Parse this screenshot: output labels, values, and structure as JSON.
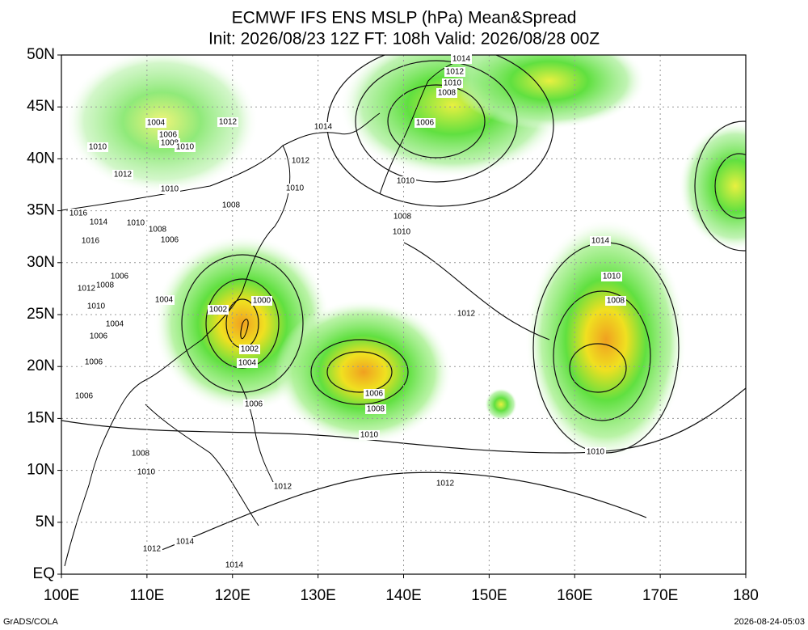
{
  "header": {
    "title": "ECMWF IFS ENS MSLP (hPa) Mean&Spread",
    "subtitle": "Init: 2026/08/23 12Z  FT: 108h  Valid: 2026/08/28 00Z"
  },
  "axes": {
    "lat_labels": [
      "EQ",
      "5N",
      "10N",
      "15N",
      "20N",
      "25N",
      "30N",
      "35N",
      "40N",
      "45N",
      "50N"
    ],
    "lon_labels": [
      "100E",
      "110E",
      "120E",
      "130E",
      "140E",
      "150E",
      "160E",
      "170E",
      "180"
    ]
  },
  "contour_labels": [
    "1014",
    "1012",
    "1010",
    "1008",
    "1006",
    "1014",
    "1012",
    "1004",
    "1006",
    "1008",
    "1010",
    "1010",
    "1012",
    "1012",
    "1010",
    "1010",
    "1010",
    "1008",
    "1008",
    "1010",
    "1016",
    "1014",
    "1010",
    "1008",
    "1006",
    "1016",
    "1014",
    "1006",
    "1008",
    "1012",
    "1010",
    "1008",
    "1000",
    "1002",
    "1004",
    "1010",
    "1012",
    "1004",
    "1006",
    "1002",
    "1004",
    "1006",
    "1006",
    "1008",
    "1006",
    "1006",
    "1010",
    "1010",
    "1008",
    "1010",
    "1012",
    "1012",
    "1014",
    "1012",
    "1014"
  ],
  "footer": {
    "left": "GrADS/COLA",
    "right": "2026-08-24-05:03"
  }
}
